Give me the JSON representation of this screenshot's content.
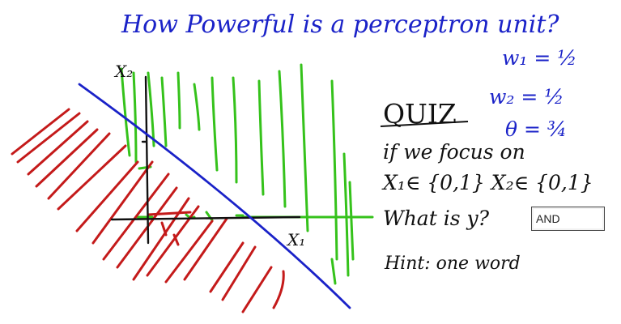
{
  "title": "How Powerful is a perceptron unit?",
  "params": {
    "w1": "w₁ = ½",
    "w2": "w₂ = ½",
    "theta": "θ = ¾"
  },
  "quiz": {
    "heading": "QUIZ",
    "line1": "if we focus on",
    "line2": "X₁∈ {0,1} X₂∈ {0,1}",
    "question": "What is y?",
    "hint": "Hint: one word"
  },
  "answer": {
    "value": "AND"
  },
  "axes": {
    "x_label": "X₁",
    "y_label": "X₂"
  },
  "colors": {
    "ink_blue": "#1a22c8",
    "ink_black": "#111111",
    "ink_green": "#35c21b",
    "ink_red": "#c41a1a"
  }
}
